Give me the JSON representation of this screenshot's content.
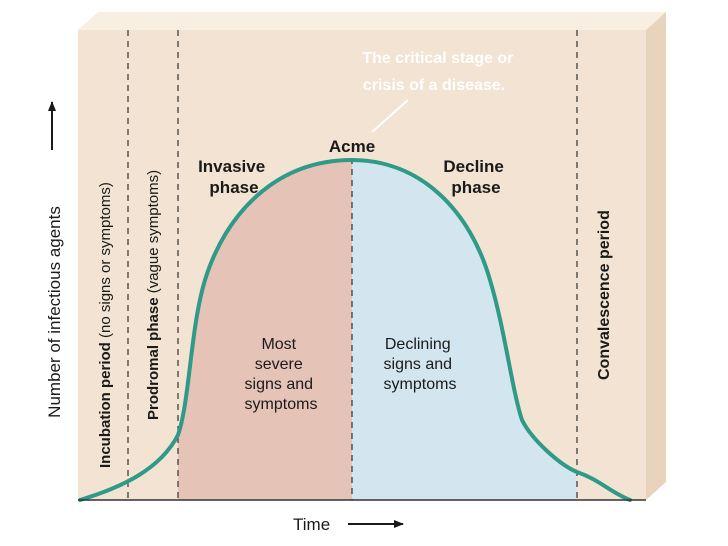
{
  "colors": {
    "panel": "#f2e3d2",
    "panel_top": "#f8eee2",
    "panel_side": "#e8d3bc",
    "invasive_fill": "#e6c3b7",
    "decline_fill": "#d3e5ee",
    "curve": "#2e9a87",
    "callout_text": "#ffffff"
  },
  "axes": {
    "y_label": "Number of infectious agents",
    "x_label": "Time"
  },
  "periods": {
    "incubation_bold": "Incubation period",
    "incubation_note": " (no signs or symptoms)",
    "prodromal_bold": "Prodromal phase",
    "prodromal_note": " (vague symptoms)",
    "invasive_line1": "Invasive",
    "invasive_line2": "phase",
    "acme": "Acme",
    "decline_line1": "Decline",
    "decline_line2": "phase",
    "convalescence": "Convalescence period"
  },
  "regions": {
    "invasive_text": [
      "Most",
      "severe",
      "signs and",
      "symptoms"
    ],
    "decline_text": [
      "Declining",
      "signs and",
      "symptoms"
    ]
  },
  "callout": {
    "line1": "The critical stage or",
    "line2": "crisis of a disease."
  }
}
